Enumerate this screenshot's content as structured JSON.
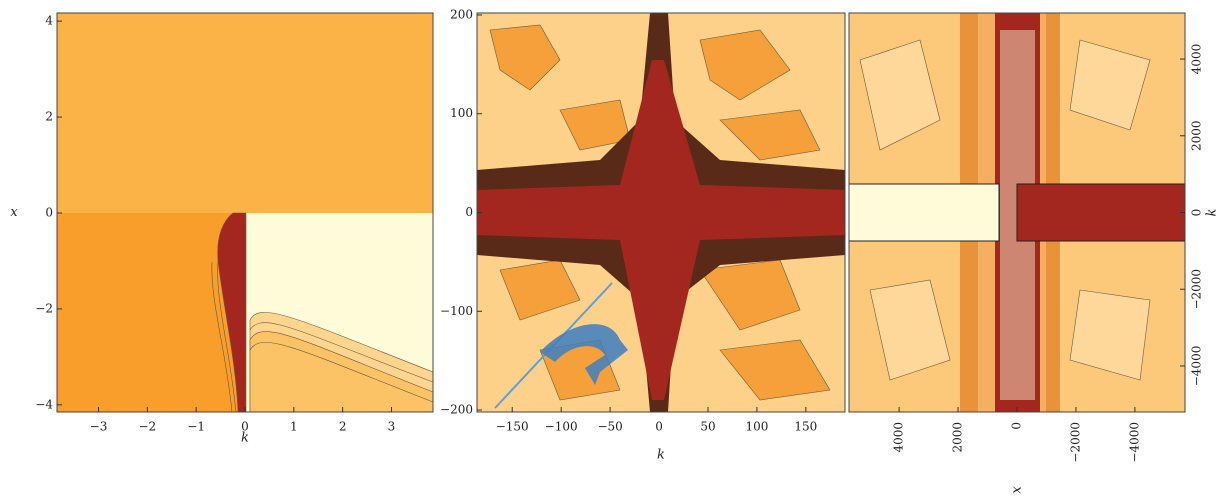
{
  "chart_data": [
    {
      "type": "contour",
      "xlabel": "k",
      "ylabel": "x",
      "xlim": [
        -3.85,
        3.85
      ],
      "ylim": [
        -4.15,
        4.17
      ],
      "xticks": [
        {
          "value": -3,
          "label": "−3"
        },
        {
          "value": -2,
          "label": "−2"
        },
        {
          "value": -1,
          "label": "−1"
        },
        0,
        1,
        2,
        3
      ],
      "yticks": [
        {
          "value": -4,
          "label": "−4"
        },
        {
          "value": -2,
          "label": "−2"
        },
        0,
        2,
        4
      ]
    },
    {
      "type": "contour",
      "xlabel": "k",
      "xlim": [
        -186,
        190
      ],
      "ylim": [
        -202,
        202
      ],
      "xticks": [
        {
          "value": -150,
          "label": "−150"
        },
        {
          "value": -100,
          "label": "−100"
        },
        {
          "value": -50,
          "label": "−50"
        },
        0,
        50,
        100,
        150
      ],
      "yticks": [
        {
          "value": -200,
          "label": "−200"
        },
        {
          "value": -100,
          "label": "−100"
        },
        0,
        100,
        200
      ]
    },
    {
      "type": "contour",
      "xlabel": "x",
      "ylabel": "k",
      "xlim": [
        5700,
        -5700
      ],
      "ylim": [
        -5200,
        5200
      ],
      "xticks": [
        4000,
        2000,
        0,
        {
          "value": -2000,
          "label": "−2000"
        },
        {
          "value": -4000,
          "label": "−4000"
        }
      ],
      "yticks": [
        {
          "value": -4000,
          "label": "−4000"
        },
        {
          "value": -2000,
          "label": "−2000"
        },
        0,
        2000,
        4000
      ]
    }
  ]
}
